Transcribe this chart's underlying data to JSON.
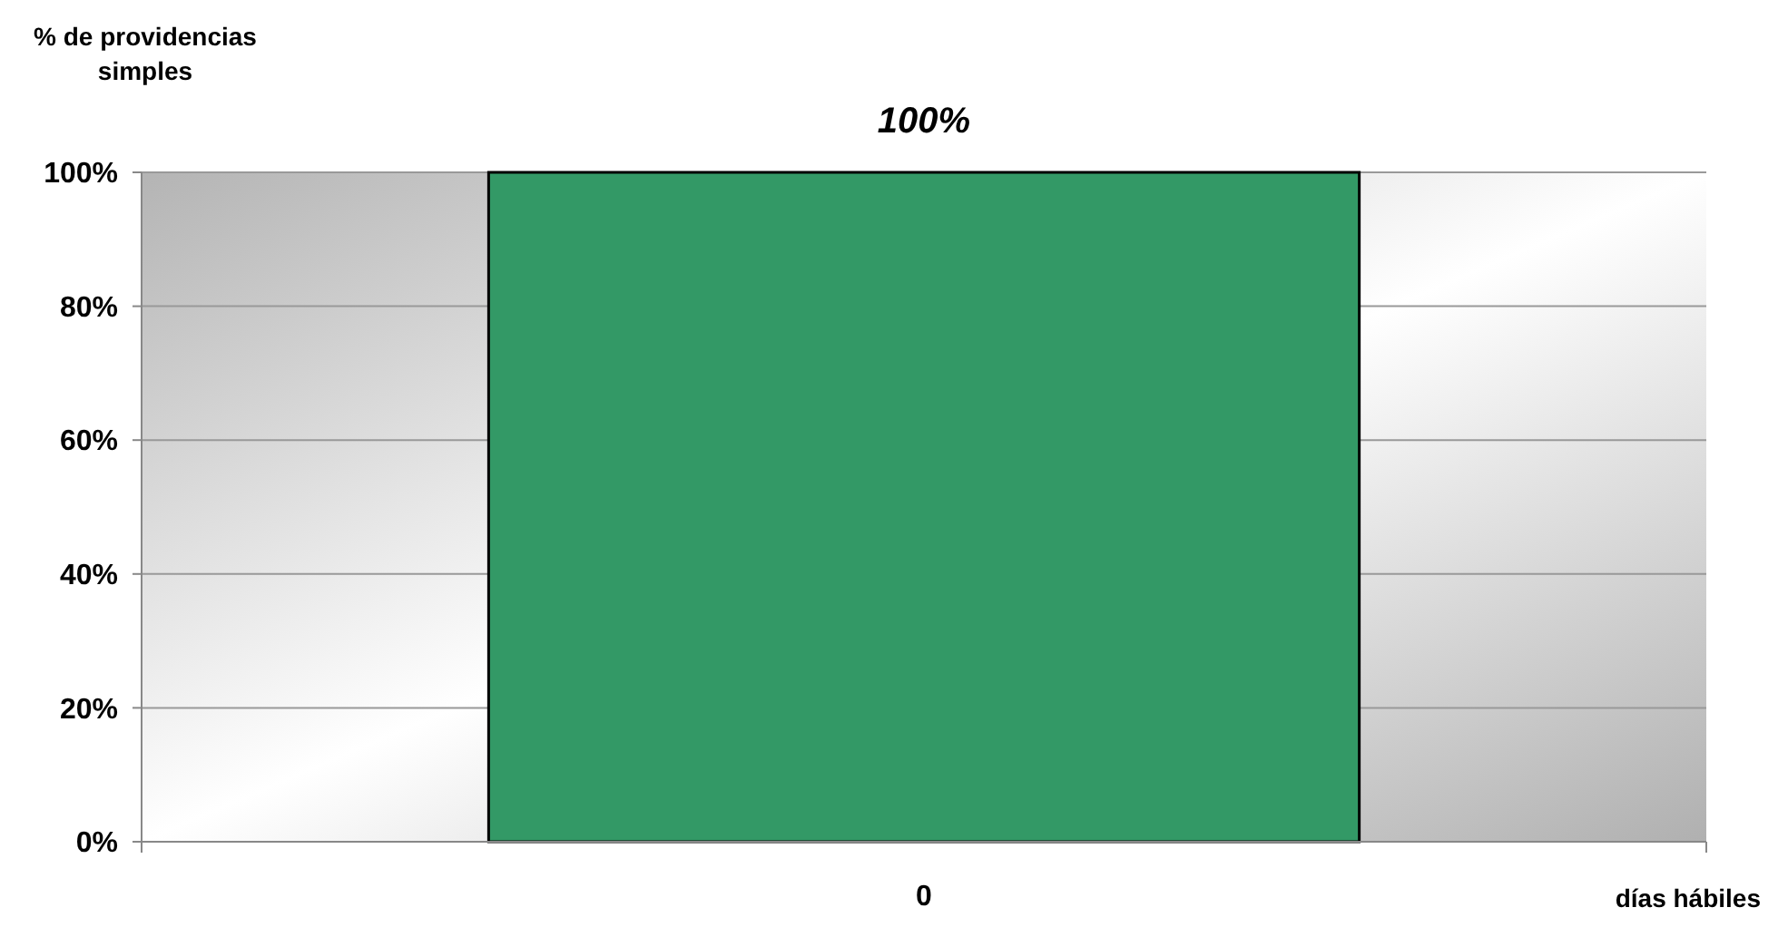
{
  "chart_data": {
    "type": "bar",
    "ylabel": "% de providencias simples",
    "xlabel": "días hábiles",
    "categories": [
      "0"
    ],
    "values": [
      100
    ],
    "color": "#339966",
    "value_labels": [
      "100%"
    ],
    "ylim": [
      0,
      100
    ],
    "yticks": [
      {
        "value": 0,
        "label": "0%"
      },
      {
        "value": 20,
        "label": "20%"
      },
      {
        "value": 40,
        "label": "40%"
      },
      {
        "value": 60,
        "label": "60%"
      },
      {
        "value": 80,
        "label": "80%"
      },
      {
        "value": 100,
        "label": "100%"
      }
    ],
    "grid": "y"
  }
}
